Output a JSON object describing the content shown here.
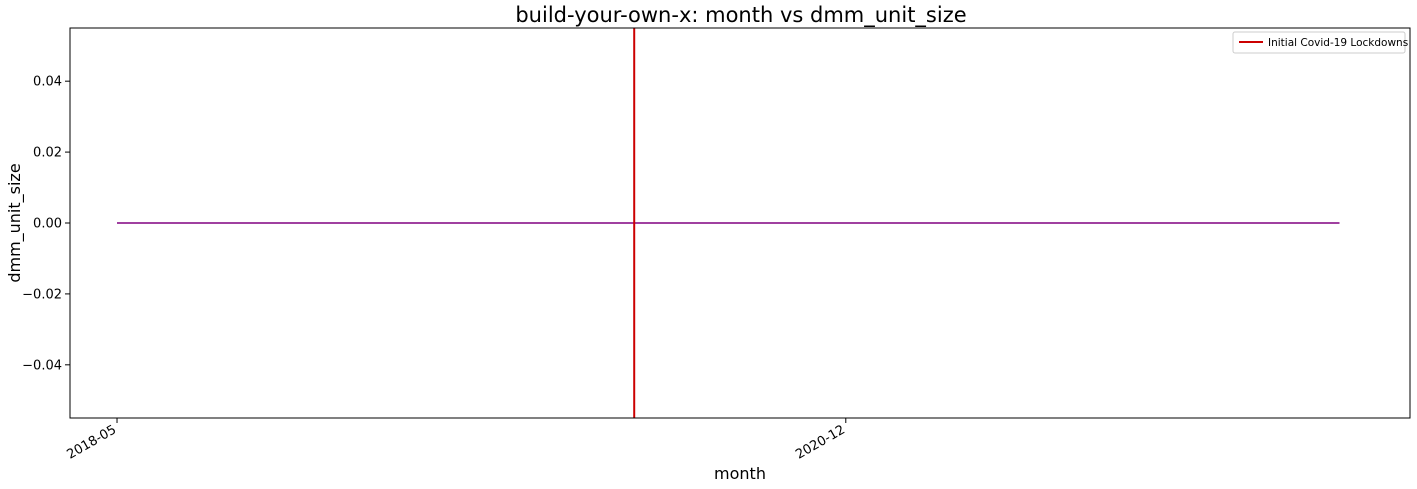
{
  "chart_data": {
    "type": "line",
    "title": "build-your-own-x: month vs dmm_unit_size",
    "xlabel": "month",
    "ylabel": "dmm_unit_size",
    "x_ticks": [
      "2018-05",
      "2020-12"
    ],
    "x_range": [
      "2018-03",
      "2022-12"
    ],
    "ylim": [
      -0.055,
      0.055
    ],
    "y_ticks": [
      0.04,
      0.02,
      0.0,
      -0.02,
      -0.04
    ],
    "y_tick_labels": [
      "0.04",
      "0.02",
      "0.00",
      "−0.02",
      "−0.04"
    ],
    "grid": false,
    "legend_position": "top-right",
    "series": [
      {
        "color": "#800080",
        "x": [
          "2018-05",
          "2022-09"
        ],
        "y": [
          0.0,
          0.0
        ]
      }
    ],
    "vertical_lines": [
      {
        "name": "Initial Covid-19 Lockdowns",
        "x": "2020-03",
        "color": "#cc0000"
      }
    ]
  }
}
